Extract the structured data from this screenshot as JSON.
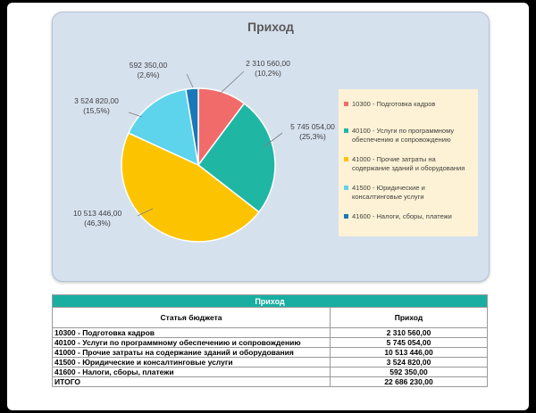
{
  "chart": {
    "title": "Приход",
    "colors": {
      "background": "#d6e1ee",
      "legend_background": "#fdf2d5"
    },
    "slices": [
      {
        "code": "10300",
        "name": "Подготовка кадров",
        "legend": "10300 - Подготовка кадров",
        "value_label": "2 310 560,00",
        "pct_label": "(10,2%)",
        "color": "#f26b6b"
      },
      {
        "code": "40100",
        "name": "Услуги по программному обеспечению и сопровождению",
        "legend_lines": [
          "40100 - Услуги по программному",
          "обеспечению и сопровождению"
        ],
        "value_label": "5 745 054,00",
        "pct_label": "(25,3%)",
        "color": "#1fb7a4"
      },
      {
        "code": "41000",
        "name": "Прочие затраты на содержание зданий и оборудования",
        "legend_lines": [
          "41000 - Прочие затраты на",
          "содержание зданий и оборудования"
        ],
        "value_label": "10 513 446,00",
        "pct_label": "(46,3%)",
        "color": "#fcc400"
      },
      {
        "code": "41500",
        "name": "Юридические и консалтинговые услуги",
        "legend_lines": [
          "41500 - Юридические и",
          "консалтинговые услуги"
        ],
        "value_label": "3 524 820,00",
        "pct_label": "(15,5%)",
        "color": "#5dd3ec"
      },
      {
        "code": "41600",
        "name": "Налоги, сборы, платежи",
        "legend": "41600 - Налоги, сборы, платежи",
        "value_label": "592 350,00",
        "pct_label": "(2,6%)",
        "color": "#1a78b8"
      }
    ]
  },
  "chart_data": {
    "type": "pie",
    "title": "Приход",
    "categories": [
      "10300 - Подготовка кадров",
      "40100 - Услуги по программному обеспечению и сопровождению",
      "41000 - Прочие затраты на содержание зданий и оборудования",
      "41500 - Юридические и консалтинговые услуги",
      "41600 - Налоги, сборы, платежи"
    ],
    "values": [
      2310560.0,
      5745054.0,
      10513446.0,
      3524820.0,
      592350.0
    ],
    "percentages": [
      10.2,
      25.3,
      46.3,
      15.5,
      2.6
    ],
    "colors": [
      "#f26b6b",
      "#1fb7a4",
      "#fcc400",
      "#5dd3ec",
      "#1a78b8"
    ],
    "legend_position": "right"
  },
  "table": {
    "title": "Приход",
    "columns": [
      "Статья бюджета",
      "Приход"
    ],
    "rows": [
      {
        "name": "10300 - Подготовка кадров",
        "value": "2 310 560,00"
      },
      {
        "name": "40100 - Услуги по программному обеспечению и сопровождению",
        "value": "5 745 054,00"
      },
      {
        "name": "41000 - Прочие затраты на содержание зданий и оборудования",
        "value": "10 513 446,00"
      },
      {
        "name": "41500 - Юридические и консалтинговые услуги",
        "value": "3 524 820,00"
      },
      {
        "name": "41600 - Налоги, сборы, платежи",
        "value": "592 350,00"
      }
    ],
    "total": {
      "name": "ИТОГО",
      "value": "22 686 230,00"
    },
    "header_color": "#1aaea2"
  }
}
